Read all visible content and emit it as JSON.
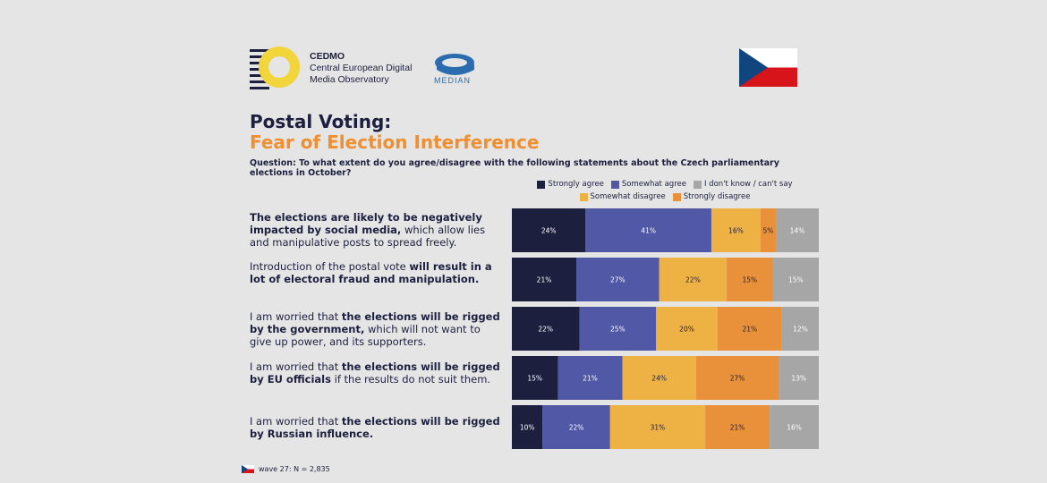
{
  "branding": {
    "cedmo_name": "CEDMO",
    "cedmo_line2": "Central European Digital",
    "cedmo_line3": "Media Observatory",
    "median_name": "MEDIAN"
  },
  "colors": {
    "strongly_agree": "#1d1f3f",
    "somewhat_agree": "#5158a5",
    "dont_know": "#a6a6a6",
    "somewhat_disagree": "#eeb144",
    "strongly_disagree": "#e8913a"
  },
  "title_line1": "Postal Voting:",
  "title_line2": "Fear of Election Interference",
  "question": "Question: To what extent do you agree/disagree with the following statements about the Czech parliamentary elections in October?",
  "statements": [
    {
      "plain_pre": "",
      "bold": "The elections are likely to be negatively impacted by social media,",
      "plain_post": " which allow lies and manipulative posts to spread freely."
    },
    {
      "plain_pre": "Introduction of the postal vote ",
      "bold": "will result in a lot of electoral fraud and manipulation.",
      "plain_post": ""
    },
    {
      "plain_pre": "I am worried that ",
      "bold": "the elections will be rigged by the government,",
      "plain_post": " which will not want to give up power, and its supporters."
    },
    {
      "plain_pre": "I am worried that ",
      "bold": "the elections will be rigged by EU officials",
      "plain_post": " if the results do not suit them."
    },
    {
      "plain_pre": "I am worried that ",
      "bold": "the elections will be rigged by Russian influence.",
      "plain_post": ""
    }
  ],
  "chart_data": {
    "type": "bar",
    "orientation": "horizontal",
    "stacked": true,
    "percent": true,
    "legend": [
      {
        "key": "strongly_agree",
        "label": "Strongly agree"
      },
      {
        "key": "somewhat_agree",
        "label": "Somewhat agree"
      },
      {
        "key": "dont_know",
        "label": "I don't know / can't say"
      },
      {
        "key": "somewhat_disagree",
        "label": "Somewhat disagree"
      },
      {
        "key": "strongly_disagree",
        "label": "Strongly disagree"
      }
    ],
    "series_order": [
      "strongly_agree",
      "somewhat_agree",
      "somewhat_disagree",
      "strongly_disagree",
      "dont_know"
    ],
    "rows": [
      {
        "strongly_agree": 24,
        "somewhat_agree": 41,
        "somewhat_disagree": 16,
        "strongly_disagree": 5,
        "dont_know": 14
      },
      {
        "strongly_agree": 21,
        "somewhat_agree": 27,
        "somewhat_disagree": 22,
        "strongly_disagree": 15,
        "dont_know": 15
      },
      {
        "strongly_agree": 22,
        "somewhat_agree": 25,
        "somewhat_disagree": 20,
        "strongly_disagree": 21,
        "dont_know": 12
      },
      {
        "strongly_agree": 15,
        "somewhat_agree": 21,
        "somewhat_disagree": 24,
        "strongly_disagree": 27,
        "dont_know": 13
      },
      {
        "strongly_agree": 10,
        "somewhat_agree": 22,
        "somewhat_disagree": 31,
        "strongly_disagree": 21,
        "dont_know": 16
      }
    ]
  },
  "footer": "wave 27: N = 2,835"
}
